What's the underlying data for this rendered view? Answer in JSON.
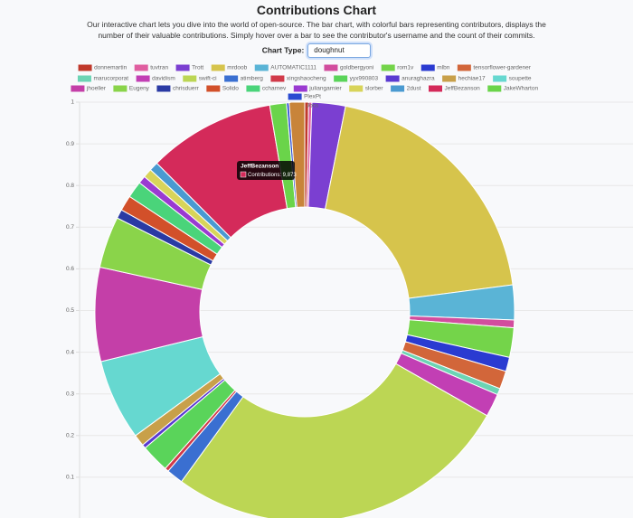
{
  "header": {
    "title": "Contributions Chart",
    "description": "Our interactive chart lets you dive into the world of open-source. The bar chart, with colorful bars representing contributors, displays the number of their valuable contributions. Simply hover over a bar to see the contributor's username and the count of their commits.",
    "control_label": "Chart Type:"
  },
  "chart_data": {
    "type": "doughnut",
    "categories": [
      "donnemartin",
      "tuvtran",
      "Trott",
      "mrdoob",
      "AUTOMATIC1111",
      "goldbergyoni",
      "rom1v",
      "mlbn",
      "tensorflower-gardener",
      "marucorporat",
      "davidism",
      "swift-ci",
      "atimberg",
      "xingshaocheng",
      "yyx990803",
      "anuraghazra",
      "hechiae17",
      "soupette",
      "jhoeller",
      "Eugeny",
      "chrisduerr",
      "Solido",
      "ccharnev",
      "juliangarnier",
      "slorber",
      "2dust",
      "JeffBezanson",
      "JakeWharton",
      "PlexPt",
      "Jocs"
    ],
    "values": [
      300,
      250,
      2600,
      20000,
      2700,
      600,
      2300,
      1100,
      1400,
      500,
      1800,
      27000,
      1300,
      300,
      2200,
      300,
      900,
      6300,
      7300,
      4000,
      700,
      1200,
      1300,
      600,
      700,
      700,
      9873,
      1300,
      200,
      1200
    ],
    "colors": [
      "#c0392b",
      "#e05ea0",
      "#7b3fd1",
      "#d6c44c",
      "#5ab4d6",
      "#d24d9e",
      "#74d44a",
      "#2a3bd1",
      "#d2663a",
      "#6cd4b4",
      "#c23fb4",
      "#bcd654",
      "#3a6fd1",
      "#d13a4a",
      "#5ad45a",
      "#5a3ad1",
      "#c8a04a",
      "#66d8d0",
      "#c43fa8",
      "#8ad44a",
      "#2a3aa4",
      "#d2502a",
      "#4ad47a",
      "#9a3ad1",
      "#d8d45a",
      "#4a9ad1",
      "#d42a5a",
      "#6ad44a",
      "#2a4ad1",
      "#c8843a"
    ],
    "ylim": [
      0,
      1
    ],
    "yticks": [
      0.1,
      0.2,
      0.3,
      0.4,
      0.5,
      0.6,
      0.7,
      0.8,
      0.9,
      1
    ],
    "grid": true,
    "legend": "top",
    "tooltip": {
      "title": "JeffBezanson",
      "body": "Contributions: 9,873"
    }
  }
}
